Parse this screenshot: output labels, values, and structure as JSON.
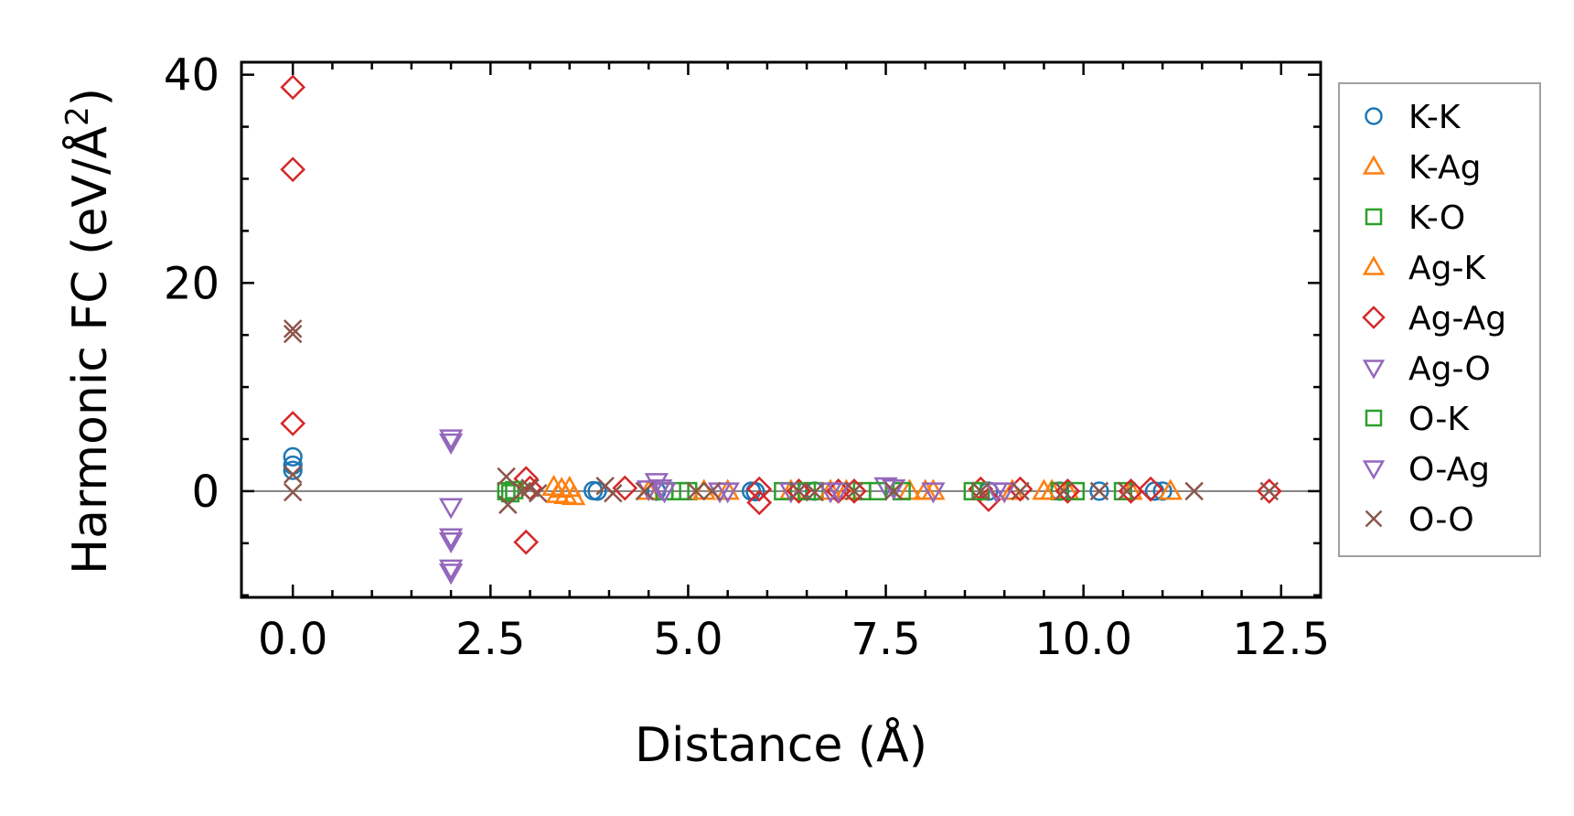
{
  "chart_data": {
    "type": "scatter",
    "xlabel": "Distance (Å)",
    "ylabel_main": "Harmonic FC (eV/Å",
    "ylabel_sup": "2",
    "ylabel_close": ")",
    "xlim": [
      -0.65,
      13.0
    ],
    "ylim": [
      -10.2,
      41.2
    ],
    "xticks": [
      0.0,
      2.5,
      5.0,
      7.5,
      10.0,
      12.5
    ],
    "xtick_labels": [
      "0.0",
      "2.5",
      "5.0",
      "7.5",
      "10.0",
      "12.5"
    ],
    "yticks": [
      0,
      20,
      40
    ],
    "ytick_labels": [
      "0",
      "20",
      "40"
    ],
    "reference_line_y": 0,
    "legend_position": "outside-right",
    "grid": false,
    "series": [
      {
        "name": "K-K",
        "marker": "circle",
        "color": "#1f77b4",
        "points": [
          [
            0,
            3.3
          ],
          [
            0,
            2.5
          ],
          [
            0,
            2.0
          ],
          [
            3.8,
            0.05
          ],
          [
            3.85,
            0.0
          ],
          [
            4.6,
            0.0
          ],
          [
            5.8,
            0.0
          ],
          [
            5.85,
            -0.05
          ],
          [
            6.6,
            0.0
          ],
          [
            8.8,
            0.0
          ],
          [
            9.7,
            0.0
          ],
          [
            10.2,
            0.0
          ],
          [
            10.9,
            0.0
          ],
          [
            11.0,
            0.0
          ]
        ]
      },
      {
        "name": "K-Ag",
        "marker": "triangle-up",
        "color": "#ff7f0e",
        "points": [
          [
            3.3,
            0.4
          ],
          [
            3.35,
            -0.3
          ],
          [
            3.5,
            0.3
          ],
          [
            3.55,
            -0.5
          ],
          [
            4.5,
            0.0
          ],
          [
            5.5,
            0.0
          ],
          [
            6.3,
            0.0
          ],
          [
            7.0,
            0.0
          ],
          [
            7.8,
            0.0
          ],
          [
            8.1,
            0.0
          ],
          [
            9.1,
            0.0
          ],
          [
            9.6,
            0.0
          ],
          [
            9.8,
            0.0
          ],
          [
            10.6,
            0.0
          ],
          [
            11.1,
            0.0
          ]
        ]
      },
      {
        "name": "K-O",
        "marker": "square",
        "color": "#2ca02c",
        "points": [
          [
            2.7,
            0.0
          ],
          [
            2.75,
            -0.2
          ],
          [
            4.7,
            0.0
          ],
          [
            5.0,
            0.0
          ],
          [
            6.2,
            0.0
          ],
          [
            6.6,
            0.0
          ],
          [
            7.2,
            0.0
          ],
          [
            7.7,
            0.0
          ],
          [
            8.6,
            0.0
          ],
          [
            9.7,
            0.0
          ],
          [
            10.5,
            0.0
          ]
        ]
      },
      {
        "name": "Ag-K",
        "marker": "triangle-up",
        "color": "#ff7f0e",
        "points": [
          [
            3.4,
            0.2
          ],
          [
            3.45,
            -0.4
          ],
          [
            5.2,
            0.0
          ],
          [
            6.8,
            0.0
          ],
          [
            8.0,
            0.0
          ],
          [
            9.5,
            0.0
          ]
        ]
      },
      {
        "name": "Ag-Ag",
        "marker": "diamond",
        "color": "#d62728",
        "points": [
          [
            0,
            38.8
          ],
          [
            0,
            30.9
          ],
          [
            0,
            6.5
          ],
          [
            2.95,
            1.2
          ],
          [
            3.0,
            0.3
          ],
          [
            2.95,
            -4.9
          ],
          [
            4.2,
            0.3
          ],
          [
            5.9,
            0.2
          ],
          [
            5.9,
            -1.1
          ],
          [
            6.4,
            0.0
          ],
          [
            6.9,
            0.0
          ],
          [
            7.1,
            0.0
          ],
          [
            8.7,
            0.2
          ],
          [
            8.8,
            -0.8
          ],
          [
            9.2,
            0.2
          ],
          [
            9.8,
            0.0
          ],
          [
            10.6,
            0.0
          ],
          [
            10.85,
            0.2
          ],
          [
            12.35,
            0.0
          ]
        ]
      },
      {
        "name": "Ag-O",
        "marker": "triangle-down",
        "color": "#9467bd",
        "points": [
          [
            2.0,
            5.1
          ],
          [
            2.0,
            4.7
          ],
          [
            2.0,
            -1.5
          ],
          [
            2.0,
            -4.4
          ],
          [
            2.0,
            -4.8
          ],
          [
            2.0,
            -7.4
          ],
          [
            2.0,
            -7.8
          ],
          [
            4.6,
            0.9
          ],
          [
            4.65,
            0.3
          ],
          [
            5.4,
            0.0
          ],
          [
            6.3,
            0.0
          ],
          [
            6.8,
            0.0
          ],
          [
            7.5,
            0.5
          ],
          [
            8.1,
            0.0
          ],
          [
            9.0,
            0.0
          ]
        ]
      },
      {
        "name": "O-K",
        "marker": "square",
        "color": "#2ca02c",
        "points": [
          [
            2.8,
            0.1
          ],
          [
            4.9,
            0.0
          ],
          [
            6.5,
            0.0
          ],
          [
            7.4,
            0.0
          ],
          [
            8.7,
            0.0
          ],
          [
            9.9,
            0.0
          ]
        ]
      },
      {
        "name": "O-Ag",
        "marker": "triangle-down",
        "color": "#9467bd",
        "points": [
          [
            4.5,
            0.2
          ],
          [
            4.7,
            0.0
          ],
          [
            5.5,
            0.0
          ],
          [
            6.9,
            0.0
          ],
          [
            7.6,
            0.3
          ],
          [
            8.9,
            0.0
          ]
        ]
      },
      {
        "name": "O-O",
        "marker": "x",
        "color": "#8c564b",
        "points": [
          [
            0,
            15.6
          ],
          [
            0,
            15.1
          ],
          [
            0,
            1.6
          ],
          [
            0,
            -0.1
          ],
          [
            2.7,
            1.4
          ],
          [
            2.72,
            -1.3
          ],
          [
            2.9,
            0.0
          ],
          [
            3.0,
            0.3
          ],
          [
            3.1,
            -0.2
          ],
          [
            3.95,
            0.5
          ],
          [
            4.05,
            -0.2
          ],
          [
            4.45,
            0.0
          ],
          [
            5.1,
            0.0
          ],
          [
            5.3,
            0.0
          ],
          [
            6.4,
            0.0
          ],
          [
            6.6,
            -0.1
          ],
          [
            7.1,
            0.0
          ],
          [
            7.6,
            0.0
          ],
          [
            8.7,
            0.0
          ],
          [
            9.2,
            0.0
          ],
          [
            9.75,
            0.0
          ],
          [
            10.2,
            0.0
          ],
          [
            10.55,
            0.0
          ],
          [
            11.4,
            0.0
          ],
          [
            12.35,
            0.0
          ]
        ]
      }
    ]
  }
}
